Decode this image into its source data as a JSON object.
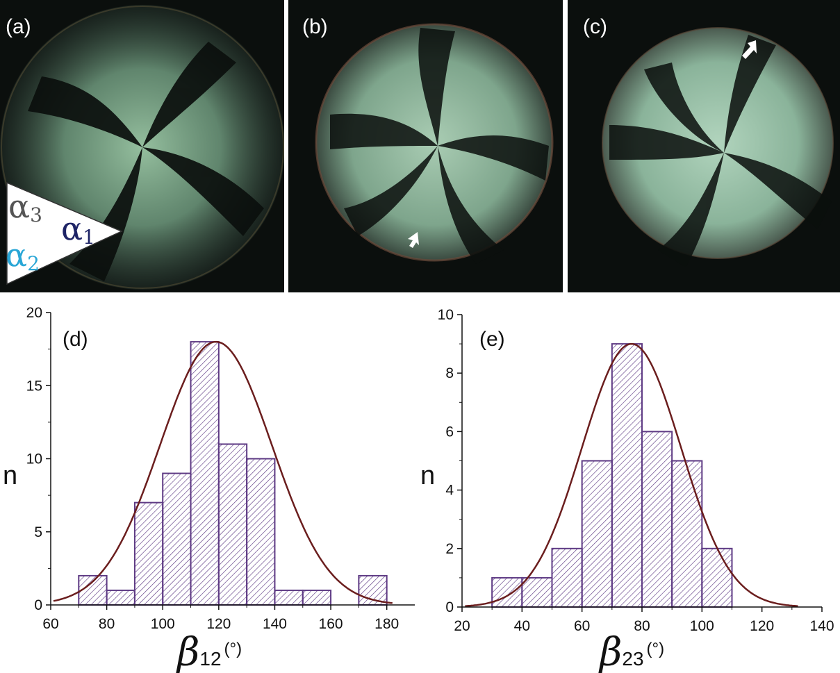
{
  "panels": {
    "a": {
      "label": "(a)"
    },
    "b": {
      "label": "(b)"
    },
    "c": {
      "label": "(c)"
    }
  },
  "angles_legend": {
    "alpha1": {
      "base": "α",
      "sub": "1",
      "color": "#1e2466"
    },
    "alpha2": {
      "base": "α",
      "sub": "2",
      "color": "#29a6d6"
    },
    "alpha3": {
      "base": "α",
      "sub": "3",
      "color": "#555555"
    }
  },
  "colors": {
    "bar_edge": "#5e3a84",
    "hatch": "#5e3a84",
    "fit_curve": "#6b1e1e",
    "photo_background": "#0b0f0d"
  },
  "chart_data": [
    {
      "type": "bar",
      "panel_label": "(d)",
      "bin_edges": [
        70,
        80,
        90,
        100,
        110,
        120,
        130,
        140,
        150,
        160,
        170,
        180
      ],
      "values": [
        2,
        1,
        7,
        9,
        18,
        11,
        10,
        1,
        1,
        0,
        2
      ],
      "fit": {
        "type": "gaussian",
        "mean": 119,
        "sigma": 20,
        "amplitude": 18
      },
      "xlim": [
        60,
        190
      ],
      "ylim": [
        0,
        20
      ],
      "xticks": [
        60,
        80,
        100,
        120,
        140,
        160,
        180
      ],
      "yticks": [
        0,
        5,
        10,
        15,
        20
      ],
      "ylabel": "n",
      "xlabel_symbol": "β",
      "xlabel_sub": "12",
      "xlabel_unit": "(°)"
    },
    {
      "type": "bar",
      "panel_label": "(e)",
      "bin_edges": [
        30,
        40,
        50,
        60,
        70,
        80,
        90,
        100,
        110
      ],
      "values": [
        1,
        1,
        2,
        5,
        9,
        6,
        5,
        2
      ],
      "fit": {
        "type": "gaussian",
        "mean": 76.5,
        "sigma": 16.5,
        "amplitude": 9
      },
      "xlim": [
        20,
        140
      ],
      "ylim": [
        0,
        10
      ],
      "xticks": [
        20,
        40,
        60,
        80,
        100,
        120,
        140
      ],
      "yticks": [
        0,
        2,
        4,
        6,
        8,
        10
      ],
      "ylabel": "n",
      "xlabel_symbol": "β",
      "xlabel_sub": "23",
      "xlabel_unit": "(°)"
    }
  ]
}
